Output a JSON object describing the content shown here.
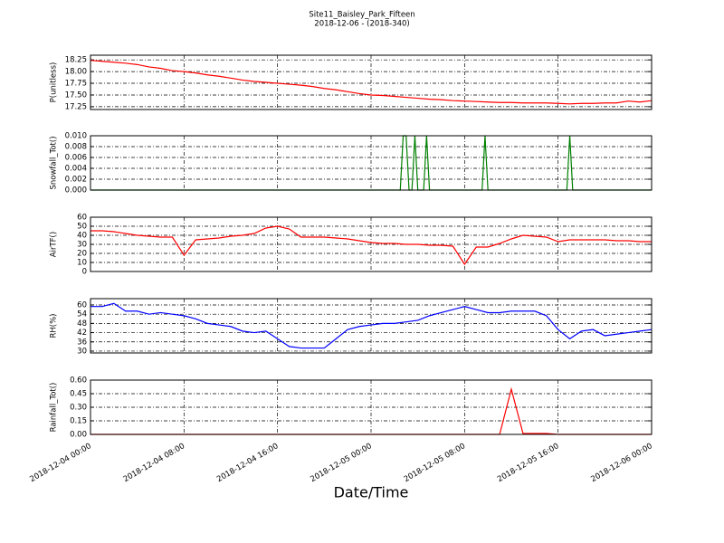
{
  "chart_data": [
    {
      "type": "line",
      "title": "Site11_Baisley_Park_Fifteen",
      "subtitle": "2018-12-06 - (2018-340)",
      "y_label": "P(unitless)",
      "color": "#ff0000",
      "grid": true,
      "ylim": [
        17.19,
        18.35
      ],
      "yticks": [
        {
          "value": 17.25,
          "label": "17.25"
        },
        {
          "value": 17.5,
          "label": "17.50"
        },
        17.75,
        {
          "value": 18,
          "label": "18.00"
        },
        18.25
      ],
      "xlim": [
        "2018-12-04 00:00",
        "2018-12-06 00:00"
      ],
      "x": [
        "2018-12-04 00:00",
        "2018-12-04 01:00",
        "2018-12-04 02:00",
        "2018-12-04 03:00",
        "2018-12-04 04:00",
        "2018-12-04 05:00",
        "2018-12-04 06:00",
        "2018-12-04 07:00",
        "2018-12-04 08:00",
        "2018-12-04 09:00",
        "2018-12-04 10:00",
        "2018-12-04 11:00",
        "2018-12-04 12:00",
        "2018-12-04 13:00",
        "2018-12-04 14:00",
        "2018-12-04 15:00",
        "2018-12-04 16:00",
        "2018-12-04 17:00",
        "2018-12-04 18:00",
        "2018-12-04 19:00",
        "2018-12-04 20:00",
        "2018-12-04 21:00",
        "2018-12-04 22:00",
        "2018-12-04 23:00",
        "2018-12-05 00:00",
        "2018-12-05 01:00",
        "2018-12-05 02:00",
        "2018-12-05 03:00",
        "2018-12-05 04:00",
        "2018-12-05 05:00",
        "2018-12-05 06:00",
        "2018-12-05 07:00",
        "2018-12-05 08:00",
        "2018-12-05 09:00",
        "2018-12-05 10:00",
        "2018-12-05 11:00",
        "2018-12-05 12:00",
        "2018-12-05 13:00",
        "2018-12-05 14:00",
        "2018-12-05 15:00",
        "2018-12-05 16:00",
        "2018-12-05 17:00",
        "2018-12-05 18:00",
        "2018-12-05 19:00",
        "2018-12-05 20:00",
        "2018-12-05 21:00",
        "2018-12-05 22:00",
        "2018-12-05 23:00",
        "2018-12-06 00:00"
      ],
      "values": [
        18.24,
        18.22,
        18.2,
        18.18,
        18.15,
        18.1,
        18.07,
        18.02,
        18.0,
        17.97,
        17.93,
        17.9,
        17.86,
        17.82,
        17.79,
        17.77,
        17.75,
        17.73,
        17.71,
        17.68,
        17.64,
        17.61,
        17.57,
        17.53,
        17.5,
        17.49,
        17.47,
        17.45,
        17.43,
        17.41,
        17.4,
        17.38,
        17.37,
        17.36,
        17.35,
        17.34,
        17.34,
        17.33,
        17.33,
        17.33,
        17.32,
        17.31,
        17.32,
        17.32,
        17.33,
        17.33,
        17.37,
        17.35,
        17.38
      ]
    },
    {
      "type": "line",
      "y_label": "Snowfall_Tot()",
      "color": "#008000",
      "grid": true,
      "ylim": [
        0,
        0.01
      ],
      "yticks": [
        {
          "value": 0,
          "label": "0.000"
        },
        {
          "value": 0.002,
          "label": "0.002"
        },
        {
          "value": 0.004,
          "label": "0.004"
        },
        {
          "value": 0.006,
          "label": "0.006"
        },
        {
          "value": 0.008,
          "label": "0.008"
        },
        {
          "value": 0.01,
          "label": "0.010"
        }
      ],
      "xlim": [
        "2018-12-04 00:00",
        "2018-12-06 00:00"
      ],
      "x": [
        "2018-12-04 00:00",
        "2018-12-05 02:30",
        "2018-12-05 02:45",
        "2018-12-05 03:00",
        "2018-12-05 03:15",
        "2018-12-05 03:30",
        "2018-12-05 03:45",
        "2018-12-05 04:00",
        "2018-12-05 04:30",
        "2018-12-05 04:45",
        "2018-12-05 05:00",
        "2018-12-05 09:30",
        "2018-12-05 09:45",
        "2018-12-05 10:00",
        "2018-12-05 16:45",
        "2018-12-05 17:00",
        "2018-12-05 17:15",
        "2018-12-06 00:00"
      ],
      "values": [
        0,
        0,
        0.01,
        0.01,
        0,
        0,
        0.01,
        0,
        0,
        0.01,
        0,
        0,
        0.01,
        0,
        0,
        0.01,
        0,
        0
      ]
    },
    {
      "type": "line",
      "y_label": "AirTF()",
      "color": "#ff0000",
      "grid": true,
      "ylim": [
        0,
        60
      ],
      "yticks": [
        0,
        10,
        20,
        30,
        40,
        50,
        60
      ],
      "xlim": [
        "2018-12-04 00:00",
        "2018-12-06 00:00"
      ],
      "x": [
        "2018-12-04 00:00",
        "2018-12-04 01:00",
        "2018-12-04 02:00",
        "2018-12-04 03:00",
        "2018-12-04 04:00",
        "2018-12-04 05:00",
        "2018-12-04 06:00",
        "2018-12-04 07:00",
        "2018-12-04 08:00",
        "2018-12-04 09:00",
        "2018-12-04 10:00",
        "2018-12-04 11:00",
        "2018-12-04 12:00",
        "2018-12-04 13:00",
        "2018-12-04 14:00",
        "2018-12-04 15:00",
        "2018-12-04 16:00",
        "2018-12-04 17:00",
        "2018-12-04 18:00",
        "2018-12-04 19:00",
        "2018-12-04 20:00",
        "2018-12-04 21:00",
        "2018-12-04 22:00",
        "2018-12-04 23:00",
        "2018-12-05 00:00",
        "2018-12-05 01:00",
        "2018-12-05 02:00",
        "2018-12-05 03:00",
        "2018-12-05 04:00",
        "2018-12-05 05:00",
        "2018-12-05 06:00",
        "2018-12-05 07:00",
        "2018-12-05 08:00",
        "2018-12-05 09:00",
        "2018-12-05 10:00",
        "2018-12-05 11:00",
        "2018-12-05 12:00",
        "2018-12-05 13:00",
        "2018-12-05 14:00",
        "2018-12-05 15:00",
        "2018-12-05 16:00",
        "2018-12-05 17:00",
        "2018-12-05 18:00",
        "2018-12-05 19:00",
        "2018-12-05 20:00",
        "2018-12-05 21:00",
        "2018-12-05 22:00",
        "2018-12-05 23:00",
        "2018-12-06 00:00"
      ],
      "values": [
        45,
        45,
        44,
        42,
        40,
        39,
        38,
        38,
        18,
        35,
        36,
        37,
        39,
        40,
        42,
        48,
        50,
        47,
        38,
        38,
        38,
        37,
        36,
        34,
        32,
        31,
        31,
        30,
        30,
        29,
        29,
        28,
        8,
        27,
        27,
        31,
        36,
        40,
        39,
        38,
        33,
        35,
        35,
        35,
        35,
        34,
        34,
        33,
        33
      ]
    },
    {
      "type": "line",
      "y_label": "RH(%)",
      "color": "#0000ff",
      "grid": true,
      "ylim": [
        28.8,
        64.1
      ],
      "yticks": [
        30,
        36,
        42,
        48,
        54,
        60
      ],
      "xlim": [
        "2018-12-04 00:00",
        "2018-12-06 00:00"
      ],
      "x": [
        "2018-12-04 00:00",
        "2018-12-04 01:00",
        "2018-12-04 02:00",
        "2018-12-04 03:00",
        "2018-12-04 04:00",
        "2018-12-04 05:00",
        "2018-12-04 06:00",
        "2018-12-04 07:00",
        "2018-12-04 08:00",
        "2018-12-04 09:00",
        "2018-12-04 10:00",
        "2018-12-04 11:00",
        "2018-12-04 12:00",
        "2018-12-04 13:00",
        "2018-12-04 14:00",
        "2018-12-04 15:00",
        "2018-12-04 16:00",
        "2018-12-04 17:00",
        "2018-12-04 18:00",
        "2018-12-04 19:00",
        "2018-12-04 20:00",
        "2018-12-04 21:00",
        "2018-12-04 22:00",
        "2018-12-04 23:00",
        "2018-12-05 00:00",
        "2018-12-05 01:00",
        "2018-12-05 02:00",
        "2018-12-05 03:00",
        "2018-12-05 04:00",
        "2018-12-05 05:00",
        "2018-12-05 06:00",
        "2018-12-05 07:00",
        "2018-12-05 08:00",
        "2018-12-05 09:00",
        "2018-12-05 10:00",
        "2018-12-05 11:00",
        "2018-12-05 12:00",
        "2018-12-05 13:00",
        "2018-12-05 14:00",
        "2018-12-05 15:00",
        "2018-12-05 16:00",
        "2018-12-05 17:00",
        "2018-12-05 18:00",
        "2018-12-05 19:00",
        "2018-12-05 20:00",
        "2018-12-05 21:00",
        "2018-12-05 22:00",
        "2018-12-05 23:00",
        "2018-12-06 00:00"
      ],
      "values": [
        59,
        59,
        61,
        56,
        56,
        54,
        55,
        54,
        53,
        51,
        48,
        47,
        46,
        43,
        42,
        43,
        38,
        33,
        32,
        32,
        32,
        38,
        44,
        46,
        47,
        48,
        48,
        49,
        50,
        53,
        55,
        57,
        59,
        57,
        55,
        55,
        56,
        56,
        56,
        53,
        44,
        38,
        43,
        44,
        40,
        41,
        42,
        43,
        44
      ]
    },
    {
      "type": "line",
      "y_label": "Rainfall_Tot()",
      "x_label": "Date/Time",
      "color": "#ff0000",
      "grid": true,
      "ylim": [
        0,
        0.6
      ],
      "yticks": [
        {
          "value": 0,
          "label": "0.00"
        },
        0.15,
        {
          "value": 0.3,
          "label": "0.30"
        },
        0.45,
        {
          "value": 0.6,
          "label": "0.60"
        }
      ],
      "xlim": [
        "2018-12-04 00:00",
        "2018-12-06 00:00"
      ],
      "xticks": [
        "2018-12-04 00:00",
        "2018-12-04 08:00",
        "2018-12-04 16:00",
        "2018-12-05 00:00",
        "2018-12-05 08:00",
        "2018-12-05 16:00",
        "2018-12-06 00:00"
      ],
      "x": [
        "2018-12-04 00:00",
        "2018-12-04 01:00",
        "2018-12-04 02:00",
        "2018-12-04 03:00",
        "2018-12-04 04:00",
        "2018-12-04 05:00",
        "2018-12-04 06:00",
        "2018-12-04 07:00",
        "2018-12-04 08:00",
        "2018-12-04 09:00",
        "2018-12-04 10:00",
        "2018-12-04 11:00",
        "2018-12-04 12:00",
        "2018-12-04 13:00",
        "2018-12-04 14:00",
        "2018-12-04 15:00",
        "2018-12-04 16:00",
        "2018-12-04 17:00",
        "2018-12-04 18:00",
        "2018-12-04 19:00",
        "2018-12-04 20:00",
        "2018-12-04 21:00",
        "2018-12-04 22:00",
        "2018-12-04 23:00",
        "2018-12-05 00:00",
        "2018-12-05 01:00",
        "2018-12-05 02:00",
        "2018-12-05 03:00",
        "2018-12-05 04:00",
        "2018-12-05 05:00",
        "2018-12-05 06:00",
        "2018-12-05 07:00",
        "2018-12-05 08:00",
        "2018-12-05 09:00",
        "2018-12-05 10:00",
        "2018-12-05 11:00",
        "2018-12-05 12:00",
        "2018-12-05 13:00",
        "2018-12-05 14:00",
        "2018-12-05 15:00",
        "2018-12-05 16:00",
        "2018-12-05 17:00",
        "2018-12-05 18:00",
        "2018-12-05 19:00",
        "2018-12-05 20:00",
        "2018-12-05 21:00",
        "2018-12-05 22:00",
        "2018-12-05 23:00",
        "2018-12-06 00:00"
      ],
      "values": [
        0,
        0,
        0,
        0,
        0,
        0,
        0,
        0,
        0,
        0,
        0,
        0,
        0,
        0,
        0,
        0,
        0,
        0,
        0,
        0,
        0,
        0,
        0,
        0,
        0,
        0,
        0,
        0,
        0,
        0,
        0,
        0,
        0,
        0,
        0,
        0,
        0.5,
        0.01,
        0.01,
        0.01,
        0,
        0,
        0,
        0,
        0,
        0,
        0,
        0,
        0
      ]
    }
  ]
}
